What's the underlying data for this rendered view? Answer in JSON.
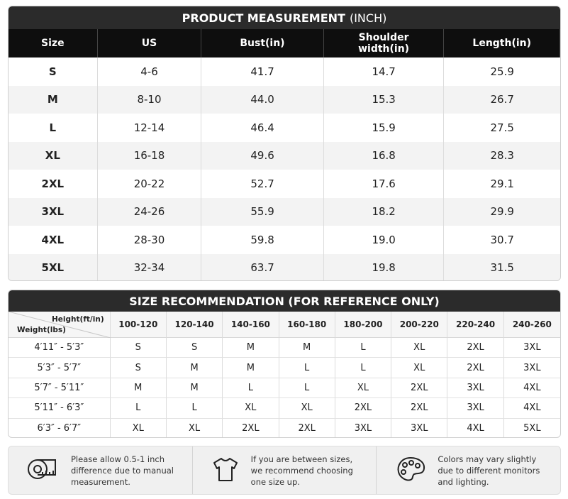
{
  "measurement": {
    "title": "PRODUCT MEASUREMENT",
    "title_unit": "(INCH)",
    "header": [
      "Size",
      "US",
      "Bust(in)",
      "Shoulder width(in)",
      "Length(in)"
    ],
    "rows": [
      [
        "S",
        "4-6",
        "41.7",
        "14.7",
        "25.9"
      ],
      [
        "M",
        "8-10",
        "44.0",
        "15.3",
        "26.7"
      ],
      [
        "L",
        "12-14",
        "46.4",
        "15.9",
        "27.5"
      ],
      [
        "XL",
        "16-18",
        "49.6",
        "16.8",
        "28.3"
      ],
      [
        "2XL",
        "20-22",
        "52.7",
        "17.6",
        "29.1"
      ],
      [
        "3XL",
        "24-26",
        "55.9",
        "18.2",
        "29.9"
      ],
      [
        "4XL",
        "28-30",
        "59.8",
        "19.0",
        "30.7"
      ],
      [
        "5XL",
        "32-34",
        "63.7",
        "19.8",
        "31.5"
      ]
    ]
  },
  "recommendation": {
    "title": "SIZE RECOMMENDATION (FOR REFERENCE ONLY)",
    "height_label": "Height(ft/in)",
    "weight_label": "Weight(lbs)",
    "columns": [
      "100-120",
      "120-140",
      "140-160",
      "160-180",
      "180-200",
      "200-220",
      "220-240",
      "240-260"
    ],
    "rows": [
      {
        "label": "4′11″ - 5′3″",
        "sizes": [
          "S",
          "S",
          "M",
          "M",
          "L",
          "XL",
          "2XL",
          "3XL"
        ]
      },
      {
        "label": "5′3″ - 5′7″",
        "sizes": [
          "S",
          "M",
          "M",
          "L",
          "L",
          "XL",
          "2XL",
          "3XL"
        ]
      },
      {
        "label": "5′7″ - 5′11″",
        "sizes": [
          "M",
          "M",
          "L",
          "L",
          "XL",
          "2XL",
          "3XL",
          "4XL"
        ]
      },
      {
        "label": "5′11″ - 6′3″",
        "sizes": [
          "L",
          "L",
          "XL",
          "XL",
          "2XL",
          "2XL",
          "3XL",
          "4XL"
        ]
      },
      {
        "label": "6′3″ - 6′7″",
        "sizes": [
          "XL",
          "XL",
          "2XL",
          "2XL",
          "3XL",
          "3XL",
          "4XL",
          "5XL"
        ]
      }
    ]
  },
  "notes": [
    {
      "lines": [
        "Please allow 0.5-1 inch",
        "difference due to manual",
        "measurement."
      ]
    },
    {
      "lines": [
        "If you are between sizes,",
        "we recommend choosing",
        "one size up."
      ]
    },
    {
      "lines": [
        "Colors may vary slightly",
        "due to different monitors",
        "and lighting."
      ]
    }
  ]
}
